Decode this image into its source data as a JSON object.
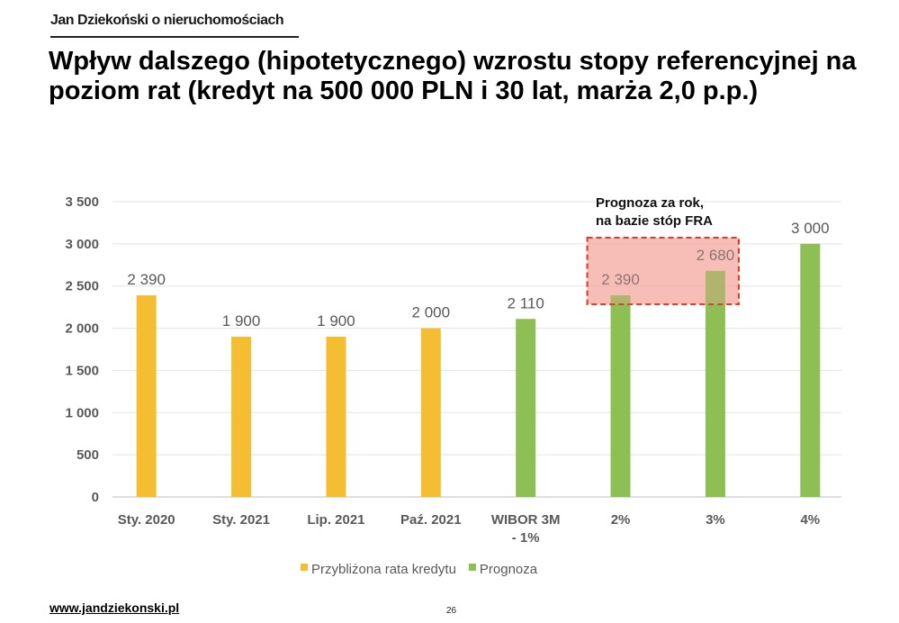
{
  "brand": "Jan Dziekoński o nieruchomościach",
  "footer": {
    "url": "www.jandziekonski.pl",
    "page": "26"
  },
  "colors": {
    "yellow": "#F5BE32",
    "green": "#8DBF55",
    "highlight_fill": "#F4A39A",
    "highlight_border": "#D9402B"
  },
  "chart_data": {
    "type": "bar",
    "title": "Wpływ dalszego (hipotetycznego) wzrostu stopy referencyjnej na poziom rat (kredyt na 500 000 PLN i 30 lat, marża 2,0 p.p.)",
    "categories": [
      [
        "Sty. 2020"
      ],
      [
        "Sty. 2021"
      ],
      [
        "Lip. 2021"
      ],
      [
        "Paź. 2021"
      ],
      [
        "WIBOR 3M",
        "- 1%"
      ],
      [
        "2%"
      ],
      [
        "3%"
      ],
      [
        "4%"
      ]
    ],
    "series": [
      {
        "name": "Przybliżona rata kredytu",
        "color": "#F5BE32",
        "values": [
          2390,
          1900,
          1900,
          2000,
          null,
          null,
          null,
          null
        ]
      },
      {
        "name": "Prognoza",
        "color": "#8DBF55",
        "values": [
          null,
          null,
          null,
          null,
          2110,
          2390,
          2680,
          3000
        ]
      }
    ],
    "data_labels": [
      "2 390",
      "1 900",
      "1 900",
      "2 000",
      "2 110",
      "2 390",
      "2 680",
      "3 000"
    ],
    "ylim": [
      0,
      3500
    ],
    "yticks": [
      0,
      500,
      1000,
      1500,
      2000,
      2500,
      3000,
      3500
    ],
    "ytick_labels": [
      "0",
      "500",
      "1 000",
      "1 500",
      "2 000",
      "2 500",
      "3 000",
      "3 500"
    ],
    "grid": true,
    "legend": "bottom",
    "annotation": {
      "lines": [
        "Prognoza za rok,",
        "na bazie stóp FRA"
      ],
      "highlights_categories": [
        "2%",
        "3%"
      ]
    }
  }
}
